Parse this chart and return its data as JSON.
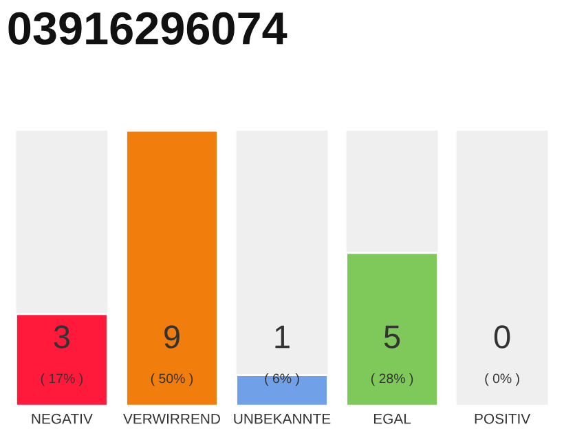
{
  "chart_data": {
    "type": "bar",
    "title": "03916296074",
    "categories": [
      "NEGATIV",
      "VERWIRREND",
      "UNBEKANNTE",
      "EGAL",
      "POSITIV"
    ],
    "values": [
      3,
      9,
      1,
      5,
      0
    ],
    "colors": [
      "#ff1a3c",
      "#f07d0c",
      "#6fa0e8",
      "#7ec95a",
      null
    ],
    "value_labels": [
      "3\n( 17% )",
      "9\n( 50% )",
      "1\n( 6% )",
      "5\n( 28% )",
      "0\n( 0% )"
    ],
    "ylim": [
      0,
      9
    ],
    "tick_labels": "x",
    "grid": false,
    "legend": false
  }
}
